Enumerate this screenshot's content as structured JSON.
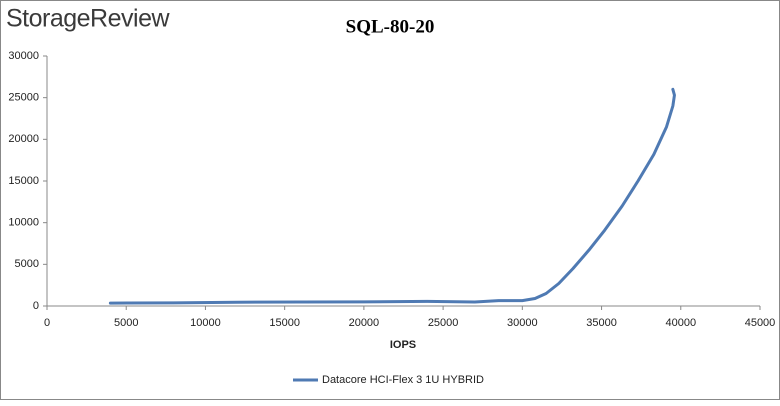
{
  "logo": "StorageReview",
  "chart_data": {
    "type": "line",
    "title": "SQL-80-20",
    "x_label": "IOPS",
    "x": [
      4000,
      8000,
      12000,
      16000,
      20000,
      24000,
      27000,
      28500,
      30000,
      30800,
      31500,
      32300,
      33200,
      34200,
      35200,
      36300,
      37300,
      38300,
      39100,
      39500,
      39600,
      39500
    ],
    "series": [
      {
        "name": "Datacore HCI-Flex 3 1U HYBRID",
        "color": "#4f7ab3",
        "values": [
          350,
          380,
          450,
          480,
          500,
          550,
          480,
          650,
          650,
          900,
          1500,
          2700,
          4500,
          6700,
          9100,
          12000,
          15000,
          18200,
          21500,
          24000,
          25300,
          26000
        ]
      }
    ],
    "xlim": [
      0,
      45000
    ],
    "xticks": [
      0,
      5000,
      10000,
      15000,
      20000,
      25000,
      30000,
      35000,
      40000,
      45000
    ],
    "ylim": [
      0,
      30000
    ],
    "yticks": [
      0,
      5000,
      10000,
      15000,
      20000,
      25000,
      30000
    ],
    "legend": "bottom"
  }
}
